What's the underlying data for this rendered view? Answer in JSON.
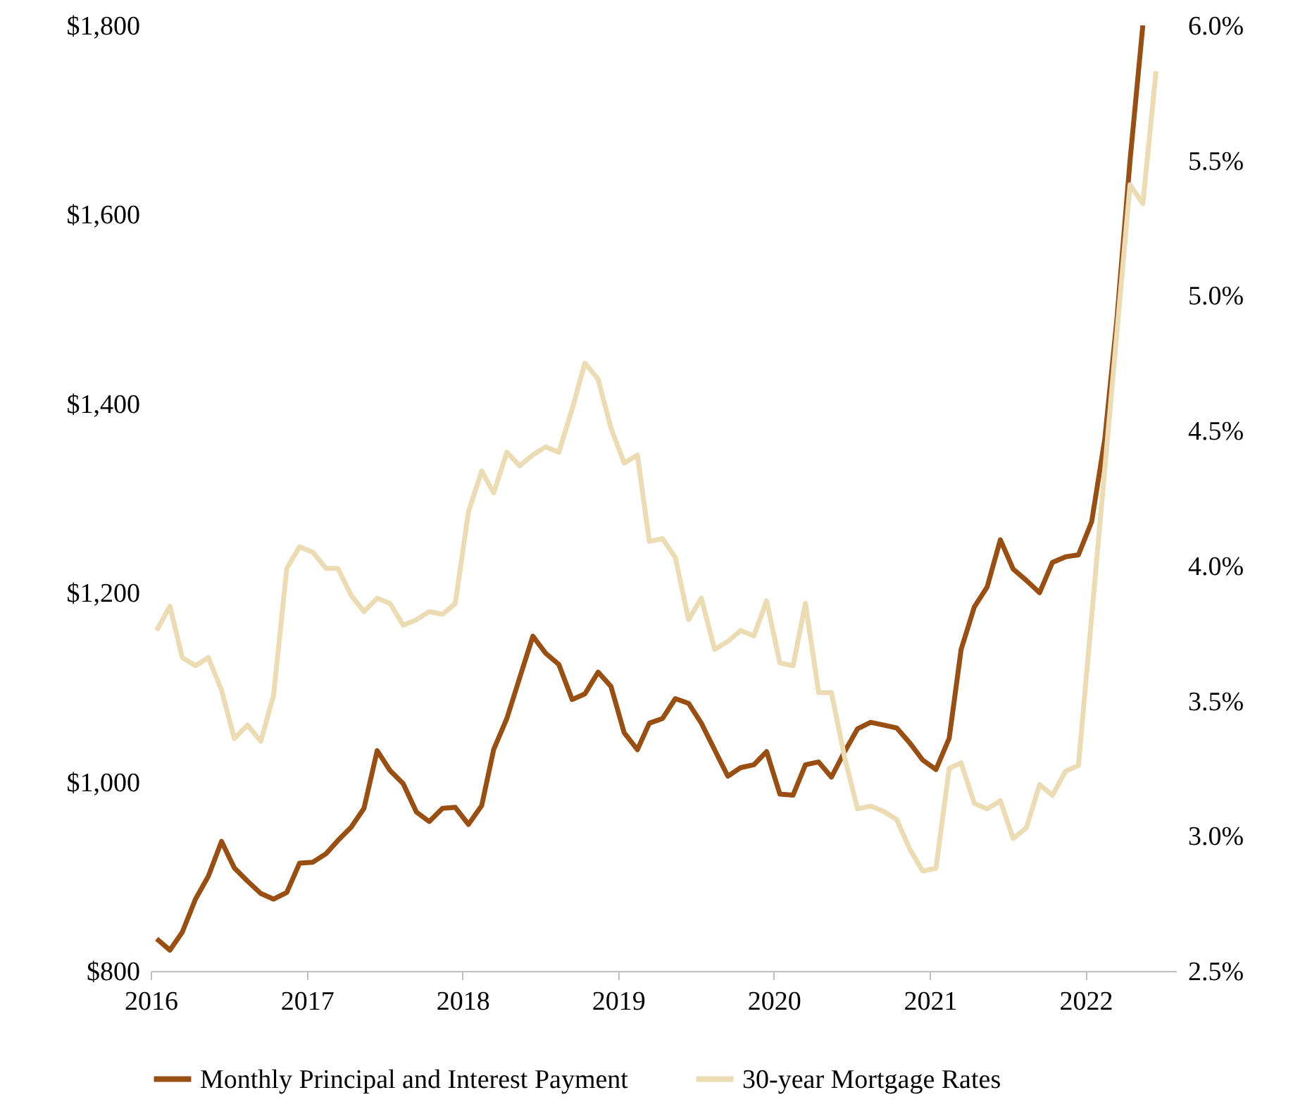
{
  "chart_data": {
    "type": "line",
    "x": [
      "2016-01-15",
      "2016-02-15",
      "2016-03-15",
      "2016-04-15",
      "2016-05-15",
      "2016-06-15",
      "2016-07-15",
      "2016-08-15",
      "2016-09-15",
      "2016-10-15",
      "2016-11-15",
      "2016-12-15",
      "2017-01-15",
      "2017-02-15",
      "2017-03-15",
      "2017-04-15",
      "2017-05-15",
      "2017-06-15",
      "2017-07-15",
      "2017-08-15",
      "2017-09-15",
      "2017-10-15",
      "2017-11-15",
      "2017-12-15",
      "2018-01-15",
      "2018-02-15",
      "2018-03-15",
      "2018-04-15",
      "2018-05-15",
      "2018-06-15",
      "2018-07-15",
      "2018-08-15",
      "2018-09-15",
      "2018-10-15",
      "2018-11-15",
      "2018-12-15",
      "2019-01-15",
      "2019-02-15",
      "2019-03-15",
      "2019-04-15",
      "2019-05-15",
      "2019-06-15",
      "2019-07-15",
      "2019-08-15",
      "2019-09-15",
      "2019-10-15",
      "2019-11-15",
      "2019-12-15",
      "2020-01-15",
      "2020-02-15",
      "2020-03-15",
      "2020-04-15",
      "2020-05-15",
      "2020-06-15",
      "2020-07-15",
      "2020-08-15",
      "2020-09-15",
      "2020-10-15",
      "2020-11-15",
      "2020-12-15",
      "2021-01-15",
      "2021-02-15",
      "2021-03-15",
      "2021-04-15",
      "2021-05-15",
      "2021-06-15",
      "2021-07-15",
      "2021-08-15",
      "2021-09-15",
      "2021-10-15",
      "2021-11-15",
      "2021-12-15",
      "2022-01-15",
      "2022-02-15",
      "2022-03-15",
      "2022-04-15",
      "2022-05-15"
    ],
    "series": [
      {
        "name": "Monthly Principal and Interest Payment",
        "color": "#9a4f12",
        "values": [
          834,
          822,
          841,
          876,
          900,
          937,
          909,
          895,
          882,
          876,
          883,
          914,
          915,
          924,
          938,
          952,
          972,
          1033,
          1012,
          998,
          968,
          958,
          972,
          973,
          955,
          975,
          1034,
          1067,
          1110,
          1154,
          1136,
          1124,
          1087,
          1093,
          1116,
          1101,
          1052,
          1034,
          1062,
          1067,
          1088,
          1083,
          1062,
          1034,
          1006,
          1015,
          1018,
          1032,
          987,
          986,
          1018,
          1021,
          1005,
          1032,
          1056,
          1063,
          1060,
          1057,
          1041,
          1023,
          1013,
          1046,
          1140,
          1185,
          1206,
          1256,
          1225,
          1213,
          1200,
          1232,
          1238,
          1240,
          1275,
          1363,
          1488,
          1657,
          1800
        ]
      },
      {
        "name": "30-year Mortgage Rates",
        "color": "#ebdcb4",
        "axis": "y2",
        "x": [
          "2016-01-15",
          "2016-02-15",
          "2016-03-15",
          "2016-04-15",
          "2016-05-15",
          "2016-06-15",
          "2016-07-15",
          "2016-08-15",
          "2016-09-15",
          "2016-10-15",
          "2016-11-15",
          "2016-12-15",
          "2017-01-15",
          "2017-02-15",
          "2017-03-15",
          "2017-04-15",
          "2017-05-15",
          "2017-06-15",
          "2017-07-15",
          "2017-08-15",
          "2017-09-15",
          "2017-10-15",
          "2017-11-15",
          "2017-12-15",
          "2018-01-15",
          "2018-02-15",
          "2018-03-15",
          "2018-04-15",
          "2018-05-15",
          "2018-06-15",
          "2018-07-15",
          "2018-08-15",
          "2018-09-15",
          "2018-10-15",
          "2018-11-15",
          "2018-12-15",
          "2019-01-15",
          "2019-02-15",
          "2019-03-15",
          "2019-04-15",
          "2019-05-15",
          "2019-06-15",
          "2019-07-15",
          "2019-08-15",
          "2019-09-15",
          "2019-10-15",
          "2019-11-15",
          "2019-12-15",
          "2020-01-15",
          "2020-02-15",
          "2020-03-15",
          "2020-04-15",
          "2020-05-15",
          "2020-06-15",
          "2020-07-15",
          "2020-08-15",
          "2020-09-15",
          "2020-10-15",
          "2020-11-15",
          "2020-12-15",
          "2021-01-15",
          "2021-02-15",
          "2021-03-15",
          "2021-04-15",
          "2021-05-15",
          "2021-06-15",
          "2021-07-15",
          "2021-08-15",
          "2021-09-15",
          "2021-10-15",
          "2021-11-15",
          "2021-12-15",
          "2022-04-15",
          "2022-05-15",
          "2022-06-15"
        ],
        "values": [
          3.76,
          3.85,
          3.66,
          3.63,
          3.66,
          3.54,
          3.36,
          3.41,
          3.35,
          3.52,
          3.99,
          4.07,
          4.05,
          3.99,
          3.99,
          3.89,
          3.83,
          3.88,
          3.86,
          3.78,
          3.8,
          3.83,
          3.82,
          3.86,
          4.2,
          4.35,
          4.27,
          4.42,
          4.37,
          4.41,
          4.44,
          4.42,
          4.58,
          4.75,
          4.69,
          4.51,
          4.38,
          4.41,
          4.09,
          4.1,
          4.03,
          3.8,
          3.88,
          3.69,
          3.72,
          3.76,
          3.74,
          3.87,
          3.64,
          3.63,
          3.86,
          3.53,
          3.53,
          3.29,
          3.1,
          3.11,
          3.09,
          3.06,
          2.95,
          2.87,
          2.88,
          3.25,
          3.27,
          3.12,
          3.1,
          3.13,
          2.99,
          3.03,
          3.19,
          3.15,
          3.24,
          3.26,
          5.41,
          5.34,
          5.83
        ]
      }
    ],
    "xlim": [
      "2016-01-01",
      "2022-08-01"
    ],
    "xticks": [
      "2016",
      "2017",
      "2018",
      "2019",
      "2020",
      "2021",
      "2022"
    ],
    "ylim": [
      800,
      1800
    ],
    "yticks": [
      {
        "value": 800,
        "label": "$800"
      },
      {
        "value": 1000,
        "label": "$1,000"
      },
      {
        "value": 1200,
        "label": "$1,200"
      },
      {
        "value": 1400,
        "label": "$1,400"
      },
      {
        "value": 1600,
        "label": "$1,600"
      },
      {
        "value": 1800,
        "label": "$1,800"
      }
    ],
    "y2lim": [
      2.5,
      6.0
    ],
    "y2ticks": [
      {
        "value": 2.5,
        "label": "2.5%"
      },
      {
        "value": 3.0,
        "label": "3.0%"
      },
      {
        "value": 3.5,
        "label": "3.5%"
      },
      {
        "value": 4.0,
        "label": "4.0%"
      },
      {
        "value": 4.5,
        "label": "4.5%"
      },
      {
        "value": 5.0,
        "label": "5.0%"
      },
      {
        "value": 5.5,
        "label": "5.5%"
      },
      {
        "value": 6.0,
        "label": "6.0%"
      }
    ],
    "legend": "bottom",
    "grid": false
  }
}
